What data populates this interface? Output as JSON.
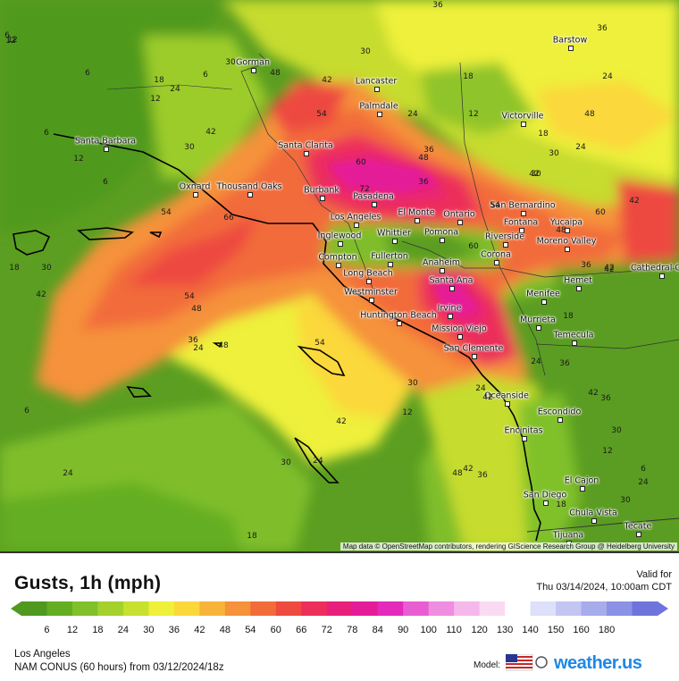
{
  "cities": [
    {
      "name": "Barstow"
    },
    {
      "name": "Gorman"
    },
    {
      "name": "Lancaster"
    },
    {
      "name": "Palmdale"
    },
    {
      "name": "Victorville"
    },
    {
      "name": "Santa Barbara"
    },
    {
      "name": "Santa Clarita"
    },
    {
      "name": "Oxnard"
    },
    {
      "name": "Thousand Oaks"
    },
    {
      "name": "Burbank"
    },
    {
      "name": "Pasadena"
    },
    {
      "name": "Los Angeles"
    },
    {
      "name": "El Monte"
    },
    {
      "name": "Ontario"
    },
    {
      "name": "San Bernardino"
    },
    {
      "name": "Fontana"
    },
    {
      "name": "Yucaipa"
    },
    {
      "name": "Inglewood"
    },
    {
      "name": "Whittier"
    },
    {
      "name": "Pomona"
    },
    {
      "name": "Riverside"
    },
    {
      "name": "Moreno Valley"
    },
    {
      "name": "Compton"
    },
    {
      "name": "Fullerton"
    },
    {
      "name": "Anaheim"
    },
    {
      "name": "Corona"
    },
    {
      "name": "Long Beach"
    },
    {
      "name": "Cathedral City"
    },
    {
      "name": "Santa Ana"
    },
    {
      "name": "Westminster"
    },
    {
      "name": "Hemet"
    },
    {
      "name": "Irvine"
    },
    {
      "name": "Huntington Beach"
    },
    {
      "name": "Menifee"
    },
    {
      "name": "Mission Viejo"
    },
    {
      "name": "Murrieta"
    },
    {
      "name": "Temecula"
    },
    {
      "name": "San Clemente"
    },
    {
      "name": "Oceanside"
    },
    {
      "name": "Escondido"
    },
    {
      "name": "Encinitas"
    },
    {
      "name": "El Cajon"
    },
    {
      "name": "San Diego"
    },
    {
      "name": "Chula Vista"
    },
    {
      "name": "Tecate"
    },
    {
      "name": "Tijuana"
    }
  ],
  "contour_labels": [
    "36",
    "12",
    "30",
    "36",
    "6",
    "18",
    "24",
    "6",
    "12",
    "48",
    "42",
    "30",
    "24",
    "18",
    "54",
    "42",
    "12",
    "24",
    "30",
    "36",
    "6",
    "48",
    "12",
    "30",
    "60",
    "48",
    "24",
    "18",
    "6",
    "30",
    "42",
    "36",
    "54",
    "72",
    "66",
    "42",
    "48",
    "60",
    "54",
    "60",
    "54",
    "48",
    "42",
    "36",
    "30",
    "48",
    "24",
    "54",
    "18",
    "42",
    "36",
    "30",
    "24",
    "36",
    "42",
    "6",
    "42",
    "30",
    "24",
    "12",
    "36",
    "42",
    "48",
    "36",
    "30",
    "42",
    "12",
    "24",
    "18",
    "24",
    "30",
    "18",
    "6",
    "12",
    "18",
    "42",
    "24",
    "6",
    "12"
  ],
  "attribution": "Map data © OpenStreetMap contributors, rendering GIScience Research Group @ Heidelberg University",
  "footer": {
    "title": "Gusts, 1h (mph)",
    "valid_label": "Valid for",
    "valid_time": "Thu 03/14/2024, 10:00am CDT",
    "location": "Los Angeles",
    "model_run": "NAM CONUS (60 hours) from 03/12/2024/18z",
    "model_label": "Model:",
    "brand": "weather.us"
  },
  "legend": {
    "ticks": [
      "6",
      "12",
      "18",
      "24",
      "30",
      "36",
      "42",
      "48",
      "54",
      "60",
      "66",
      "72",
      "78",
      "84",
      "90",
      "100",
      "110",
      "120",
      "130",
      "140",
      "150",
      "160",
      "180"
    ],
    "colors": [
      "#4f9a1e",
      "#64ae22",
      "#80c12a",
      "#a4d12c",
      "#c8e02f",
      "#eef03a",
      "#fbd83a",
      "#f8b43a",
      "#f5923a",
      "#f26c3a",
      "#ee4a3f",
      "#ec2f5a",
      "#e8207c",
      "#e51c9a",
      "#e32abb",
      "#e85ed2",
      "#ef8ee0",
      "#f5b8ea",
      "#fadaf3",
      "#ffffff",
      "#dde0f8",
      "#c3c6f2",
      "#a7aceb",
      "#8b91e4",
      "#6f74dc"
    ]
  }
}
